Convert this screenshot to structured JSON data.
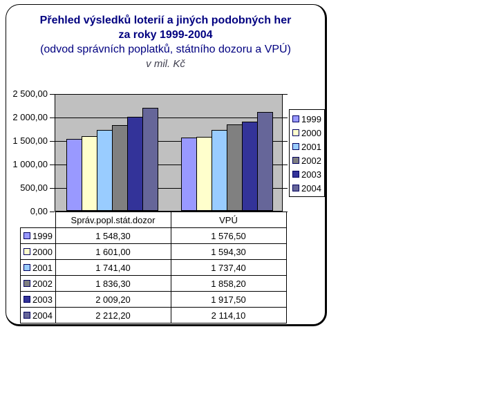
{
  "title": {
    "line1": "Přehled výsledků loterií a jiných podobných her",
    "line2": "za roky 1999-2004",
    "line3": "(odvod správních poplatků, státního dozoru a VPÚ)",
    "line4": "v mil. Kč"
  },
  "colors": {
    "title_text": "#000080",
    "units_text": "#404050",
    "plot_background": "#C0C0C0",
    "axis": "#000000",
    "frame_border": "#000000"
  },
  "chart_data": {
    "type": "bar",
    "title": "Přehled výsledků loterií a jiných podobných her za roky 1999-2004",
    "subtitle": "(odvod správních poplatků, státního dozoru a VPÚ)",
    "units": "v mil. Kč",
    "categories": [
      "Správ.popl.stát.dozor",
      "VPÚ"
    ],
    "series": [
      {
        "name": "1999",
        "color": "#9999FF",
        "values": [
          1548.3,
          1576.5
        ],
        "display": [
          "1 548,30",
          "1 576,50"
        ]
      },
      {
        "name": "2000",
        "color": "#FFFFCC",
        "values": [
          1601.0,
          1594.3
        ],
        "display": [
          "1 601,00",
          "1 594,30"
        ]
      },
      {
        "name": "2001",
        "color": "#99CCFF",
        "values": [
          1741.4,
          1737.4
        ],
        "display": [
          "1 741,40",
          "1 737,40"
        ]
      },
      {
        "name": "2002",
        "color": "#808080",
        "values": [
          1836.3,
          1858.2
        ],
        "display": [
          "1 836,30",
          "1 858,20"
        ]
      },
      {
        "name": "2003",
        "color": "#333399",
        "values": [
          2009.2,
          1917.5
        ],
        "display": [
          "2 009,20",
          "1 917,50"
        ]
      },
      {
        "name": "2004",
        "color": "#666699",
        "values": [
          2212.2,
          2114.1
        ],
        "display": [
          "2 212,20",
          "2 114,10"
        ]
      }
    ],
    "ylim": [
      0,
      2500
    ],
    "ytick_interval": 500,
    "ytick_labels_top_down": [
      "2 500,00",
      "2 000,00",
      "1 500,00",
      "1 000,00",
      "500,00",
      "0,00"
    ],
    "grid": true,
    "legend_position": "right",
    "legend_labels": [
      "1999",
      "2000",
      "2001",
      "2002",
      "2003",
      "2004"
    ]
  }
}
